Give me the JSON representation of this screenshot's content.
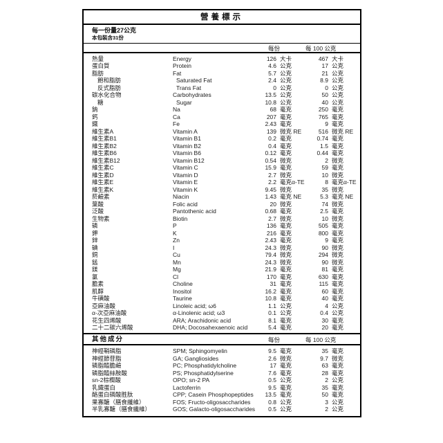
{
  "colors": {
    "background": "#ffffff",
    "border": "#000000",
    "text": "#1c1c1c"
  },
  "title": "營養標示",
  "serving": {
    "size_line": "每一份量27公克",
    "count_line": "本包裝含31份"
  },
  "columns": {
    "per_serving": "每份",
    "per_100g": "每 100 公克"
  },
  "other_section_title": "其他成分",
  "main_rows": [
    {
      "zh": "熱量",
      "en": "Energy",
      "v1": "126",
      "u1": "大卡",
      "v2": "467",
      "u2": "大卡",
      "indent": false
    },
    {
      "zh": "蛋白質",
      "en": "Protein",
      "v1": "4.6",
      "u1": "公克",
      "v2": "17",
      "u2": "公克",
      "indent": false
    },
    {
      "zh": "脂肪",
      "en": "Fat",
      "v1": "5.7",
      "u1": "公克",
      "v2": "21",
      "u2": "公克",
      "indent": false
    },
    {
      "zh": "飽和脂肪",
      "en": "Saturated Fat",
      "v1": "2.4",
      "u1": "公克",
      "v2": "8.9",
      "u2": "公克",
      "indent": true
    },
    {
      "zh": "反式脂肪",
      "en": "Trans Fat",
      "v1": "0",
      "u1": "公克",
      "v2": "0",
      "u2": "公克",
      "indent": true
    },
    {
      "zh": "碳水化合物",
      "en": "Carbohydrates",
      "v1": "13.5",
      "u1": "公克",
      "v2": "50",
      "u2": "公克",
      "indent": false
    },
    {
      "zh": "糖",
      "en": "Sugar",
      "v1": "10.8",
      "u1": "公克",
      "v2": "40",
      "u2": "公克",
      "indent": true
    },
    {
      "zh": "鈉",
      "en": "Na",
      "v1": "68",
      "u1": "毫克",
      "v2": "250",
      "u2": "毫克",
      "indent": false
    },
    {
      "zh": "鈣",
      "en": "Ca",
      "v1": "207",
      "u1": "毫克",
      "v2": "765",
      "u2": "毫克",
      "indent": false
    },
    {
      "zh": "鐵",
      "en": "Fe",
      "v1": "2.43",
      "u1": "毫克",
      "v2": "9",
      "u2": "毫克",
      "indent": false
    },
    {
      "zh": "維生素A",
      "en": "Vitamin A",
      "v1": "139",
      "u1": "微克 RE",
      "v2": "516",
      "u2": "微克 RE",
      "indent": false
    },
    {
      "zh": "維生素B1",
      "en": "Vitamin B1",
      "v1": "0.2",
      "u1": "毫克",
      "v2": "0.74",
      "u2": "毫克",
      "indent": false
    },
    {
      "zh": "維生素B2",
      "en": "Vitamin B2",
      "v1": "0.4",
      "u1": "毫克",
      "v2": "1.5",
      "u2": "毫克",
      "indent": false
    },
    {
      "zh": "維生素B6",
      "en": "Vitamin B6",
      "v1": "0.12",
      "u1": "毫克",
      "v2": "0.44",
      "u2": "毫克",
      "indent": false
    },
    {
      "zh": "維生素B12",
      "en": "Vitamin B12",
      "v1": "0.54",
      "u1": "微克",
      "v2": "2",
      "u2": "微克",
      "indent": false
    },
    {
      "zh": "維生素C",
      "en": "Vitamin C",
      "v1": "15.9",
      "u1": "毫克",
      "v2": "59",
      "u2": "毫克",
      "indent": false
    },
    {
      "zh": "維生素D",
      "en": "Vitamin D",
      "v1": "2.7",
      "u1": "微克",
      "v2": "10",
      "u2": "微克",
      "indent": false
    },
    {
      "zh": "維生素E",
      "en": "Vitamin E",
      "v1": "2.2",
      "u1": "毫克α-TE",
      "v2": "8",
      "u2": "毫克α-TE",
      "indent": false
    },
    {
      "zh": "維生素K",
      "en": "Vitamin K",
      "v1": "9.45",
      "u1": "微克",
      "v2": "35",
      "u2": "微克",
      "indent": false
    },
    {
      "zh": "菸鹼素",
      "en": "Niacin",
      "v1": "1.43",
      "u1": "毫克 NE",
      "v2": "5.3",
      "u2": "毫克 NE",
      "indent": false
    },
    {
      "zh": "葉酸",
      "en": "Folic acid",
      "v1": "20",
      "u1": "微克",
      "v2": "74",
      "u2": "微克",
      "indent": false
    },
    {
      "zh": "泛酸",
      "en": "Pantothenic acid",
      "v1": "0.68",
      "u1": "毫克",
      "v2": "2.5",
      "u2": "毫克",
      "indent": false
    },
    {
      "zh": "生物素",
      "en": "Biotin",
      "v1": "2.7",
      "u1": "微克",
      "v2": "10",
      "u2": "微克",
      "indent": false
    },
    {
      "zh": "磷",
      "en": "P",
      "v1": "136",
      "u1": "毫克",
      "v2": "505",
      "u2": "毫克",
      "indent": false
    },
    {
      "zh": "鉀",
      "en": "K",
      "v1": "216",
      "u1": "毫克",
      "v2": "800",
      "u2": "毫克",
      "indent": false
    },
    {
      "zh": "鋅",
      "en": "Zn",
      "v1": "2.43",
      "u1": "毫克",
      "v2": "9",
      "u2": "毫克",
      "indent": false
    },
    {
      "zh": "碘",
      "en": "I",
      "v1": "24.3",
      "u1": "微克",
      "v2": "90",
      "u2": "微克",
      "indent": false
    },
    {
      "zh": "銅",
      "en": "Cu",
      "v1": "79.4",
      "u1": "微克",
      "v2": "294",
      "u2": "微克",
      "indent": false
    },
    {
      "zh": "錳",
      "en": "Mn",
      "v1": "24.3",
      "u1": "微克",
      "v2": "90",
      "u2": "微克",
      "indent": false
    },
    {
      "zh": "鎂",
      "en": "Mg",
      "v1": "21.9",
      "u1": "毫克",
      "v2": "81",
      "u2": "毫克",
      "indent": false
    },
    {
      "zh": "氯",
      "en": "Cl",
      "v1": "170",
      "u1": "毫克",
      "v2": "630",
      "u2": "毫克",
      "indent": false
    },
    {
      "zh": "膽素",
      "en": "Choline",
      "v1": "31",
      "u1": "毫克",
      "v2": "115",
      "u2": "毫克",
      "indent": false
    },
    {
      "zh": "肌醇",
      "en": "Inositol",
      "v1": "16.2",
      "u1": "毫克",
      "v2": "60",
      "u2": "毫克",
      "indent": false
    },
    {
      "zh": "牛磺酸",
      "en": "Taurine",
      "v1": "10.8",
      "u1": "毫克",
      "v2": "40",
      "u2": "毫克",
      "indent": false
    },
    {
      "zh": "亞麻油酸",
      "en": "Linoleic acid; ω6",
      "v1": "1.1",
      "u1": "公克",
      "v2": "4",
      "u2": "公克",
      "indent": false
    },
    {
      "zh": "α-次亞麻油酸",
      "en": "α-Linolenic acid; ω3",
      "v1": "0.1",
      "u1": "公克",
      "v2": "0.4",
      "u2": "公克",
      "indent": false
    },
    {
      "zh": "花生四烯酸",
      "en": "ARA; Arachidonic acid",
      "v1": "8.1",
      "u1": "毫克",
      "v2": "30",
      "u2": "毫克",
      "indent": false
    },
    {
      "zh": "二十二碳六烯酸",
      "en": "DHA; Docosahexaenoic acid",
      "v1": "5.4",
      "u1": "毫克",
      "v2": "20",
      "u2": "毫克",
      "indent": false
    }
  ],
  "other_rows": [
    {
      "zh": "神經鞘磷脂",
      "en": "SPM; Sphingomyelin",
      "v1": "9.5",
      "u1": "毫克",
      "v2": "35",
      "u2": "毫克",
      "indent": false
    },
    {
      "zh": "神經節苷脂",
      "en": "GA; Gangliosides",
      "v1": "2.6",
      "u1": "微克",
      "v2": "9.7",
      "u2": "微克",
      "indent": false
    },
    {
      "zh": "磷脂醯膽鹼",
      "en": "PC; Phosphatidylcholine",
      "v1": "17",
      "u1": "毫克",
      "v2": "63",
      "u2": "毫克",
      "indent": false
    },
    {
      "zh": "磷脂醯絲胺酸",
      "en": "PS; Phosphatidylserine",
      "v1": "7.6",
      "u1": "毫克",
      "v2": "28",
      "u2": "毫克",
      "indent": false
    },
    {
      "zh": "sn-2棕櫚酸",
      "en": "OPO; sn-2 PA",
      "v1": "0.5",
      "u1": "公克",
      "v2": "2",
      "u2": "公克",
      "indent": false
    },
    {
      "zh": "乳鐵蛋白",
      "en": "Lactoferrin",
      "v1": "9.5",
      "u1": "毫克",
      "v2": "35",
      "u2": "毫克",
      "indent": false
    },
    {
      "zh": "酪蛋白磷酸胜肽",
      "en": "CPP; Casein Phosphopeptides",
      "v1": "13.5",
      "u1": "毫克",
      "v2": "50",
      "u2": "毫克",
      "indent": false
    },
    {
      "zh": "果寡醣（膳食纖維）",
      "en": "FOS; Fructo-oligosaccharides",
      "v1": "0.8",
      "u1": "公克",
      "v2": "3",
      "u2": "公克",
      "indent": false
    },
    {
      "zh": "半乳寡醣（膳食纖維）",
      "en": "GOS; Galacto-oligosaccharides",
      "v1": "0.5",
      "u1": "公克",
      "v2": "2",
      "u2": "公克",
      "indent": false
    }
  ]
}
